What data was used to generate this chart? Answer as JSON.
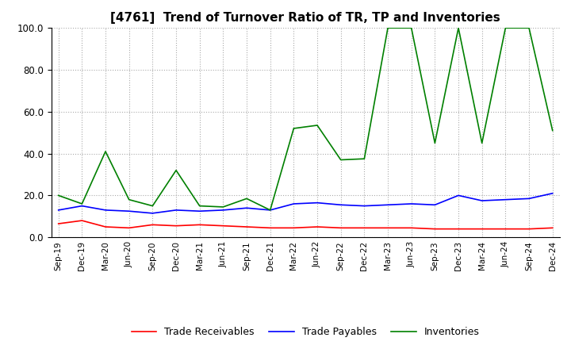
{
  "title": "[4761]  Trend of Turnover Ratio of TR, TP and Inventories",
  "ylim": [
    0,
    100
  ],
  "yticks": [
    0.0,
    20.0,
    40.0,
    60.0,
    80.0,
    100.0
  ],
  "legend_labels": [
    "Trade Receivables",
    "Trade Payables",
    "Inventories"
  ],
  "line_colors": [
    "red",
    "blue",
    "green"
  ],
  "x_labels": [
    "Sep-19",
    "Dec-19",
    "Mar-20",
    "Jun-20",
    "Sep-20",
    "Dec-20",
    "Mar-21",
    "Jun-21",
    "Sep-21",
    "Dec-21",
    "Mar-22",
    "Jun-22",
    "Sep-22",
    "Dec-22",
    "Mar-23",
    "Jun-23",
    "Sep-23",
    "Dec-23",
    "Mar-24",
    "Jun-24",
    "Sep-24",
    "Dec-24"
  ],
  "trade_receivables": [
    6.5,
    8.0,
    5.0,
    4.5,
    6.0,
    5.5,
    6.0,
    5.5,
    5.0,
    4.5,
    4.5,
    5.0,
    4.5,
    4.5,
    4.5,
    4.5,
    4.0,
    4.0,
    4.0,
    4.0,
    4.0,
    4.5
  ],
  "trade_payables": [
    13.0,
    15.0,
    13.0,
    12.5,
    11.5,
    13.0,
    12.5,
    13.0,
    14.0,
    13.0,
    16.0,
    16.5,
    15.5,
    15.0,
    15.5,
    16.0,
    15.5,
    20.0,
    17.5,
    18.0,
    18.5,
    21.0
  ],
  "inventories": [
    20.0,
    16.0,
    41.0,
    18.0,
    15.0,
    32.0,
    15.0,
    14.5,
    18.5,
    13.0,
    52.0,
    53.5,
    37.0,
    37.5,
    100.0,
    100.0,
    45.0,
    100.0,
    45.0,
    100.0,
    100.0,
    51.0
  ]
}
